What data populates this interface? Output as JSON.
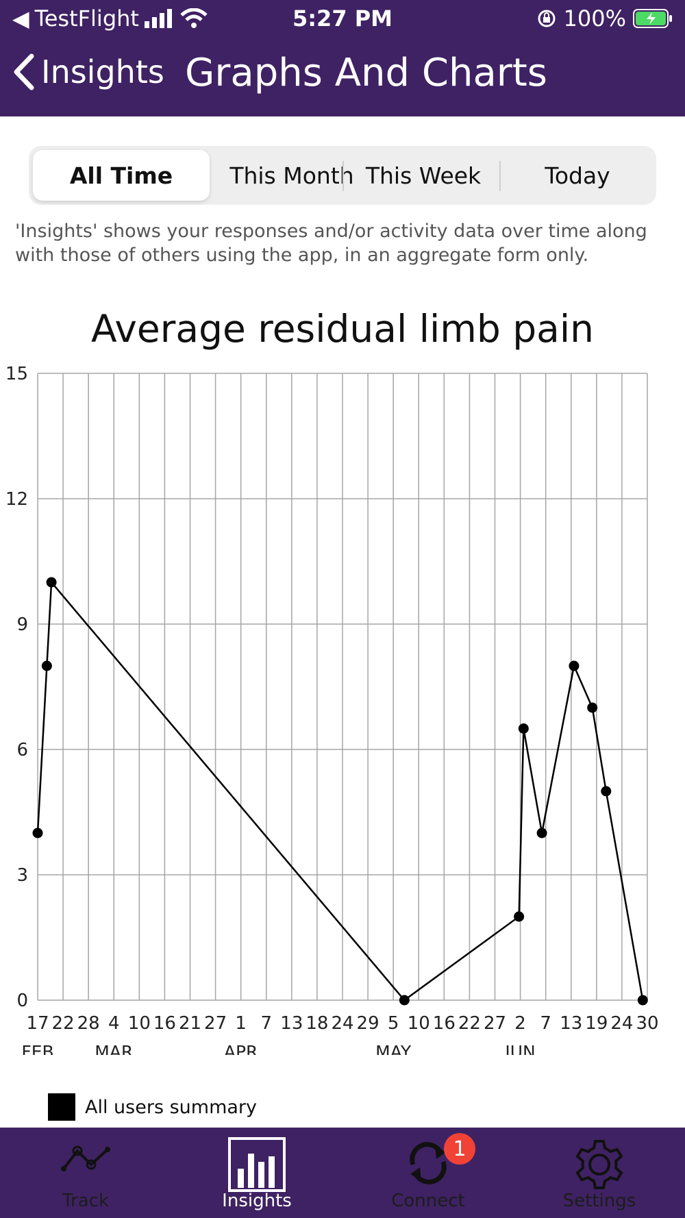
{
  "status": {
    "back_app": "TestFlight",
    "time": "5:27 PM",
    "battery": "100%"
  },
  "nav": {
    "back_label": "Insights",
    "title": "Graphs And Charts"
  },
  "segments": [
    {
      "label": "All Time",
      "active": true
    },
    {
      "label": "This Month",
      "active": false
    },
    {
      "label": "This Week",
      "active": false
    },
    {
      "label": "Today",
      "active": false
    }
  ],
  "info_text": "'Insights' shows your responses and/or activity data over time along with those of others using the app, in an aggregate form only.",
  "chart_data": {
    "type": "line",
    "title": "Average residual limb pain",
    "ylim": [
      0,
      15
    ],
    "y_ticks": [
      "0",
      "3",
      "6",
      "9",
      "12",
      "15"
    ],
    "x_tick_labels": [
      "17",
      "22",
      "28",
      "4",
      "10",
      "16",
      "21",
      "27",
      "1",
      "7",
      "13",
      "18",
      "24",
      "29",
      "5",
      "10",
      "16",
      "22",
      "27",
      "2",
      "7",
      "13",
      "19",
      "24",
      "30"
    ],
    "month_labels": [
      {
        "label": "FEB",
        "tick": "17"
      },
      {
        "label": "MAR",
        "tick": "4"
      },
      {
        "label": "APR",
        "tick": "1"
      },
      {
        "label": "MAY",
        "tick": "5"
      },
      {
        "label": "JUN",
        "tick": "2"
      }
    ],
    "grid": true,
    "series": [
      {
        "name": "All users  summary",
        "color": "#000000",
        "points": [
          {
            "x": "Feb 17",
            "y": 4
          },
          {
            "x": "Feb 19",
            "y": 8
          },
          {
            "x": "Feb 20",
            "y": 10
          },
          {
            "x": "May 8",
            "y": 0
          },
          {
            "x": "Jun 2",
            "y": 2
          },
          {
            "x": "Jun 3",
            "y": 6.5
          },
          {
            "x": "Jun 7",
            "y": 4
          },
          {
            "x": "Jun 14",
            "y": 8
          },
          {
            "x": "Jun 18",
            "y": 7
          },
          {
            "x": "Jun 21",
            "y": 5
          },
          {
            "x": "Jun 29",
            "y": 0
          }
        ]
      }
    ],
    "legend": "bottom-left"
  },
  "tabs": [
    {
      "label": "Track",
      "icon": "track-line-icon",
      "active": false
    },
    {
      "label": "Insights",
      "icon": "bar-chart-icon",
      "active": true
    },
    {
      "label": "Connect",
      "icon": "sync-icon",
      "active": false
    },
    {
      "label": "Settings",
      "icon": "gear-icon",
      "active": false
    }
  ],
  "connect_badge": "1",
  "colors": {
    "brand": "#3f2263",
    "badge": "#f04336",
    "battery": "#4cd964"
  }
}
